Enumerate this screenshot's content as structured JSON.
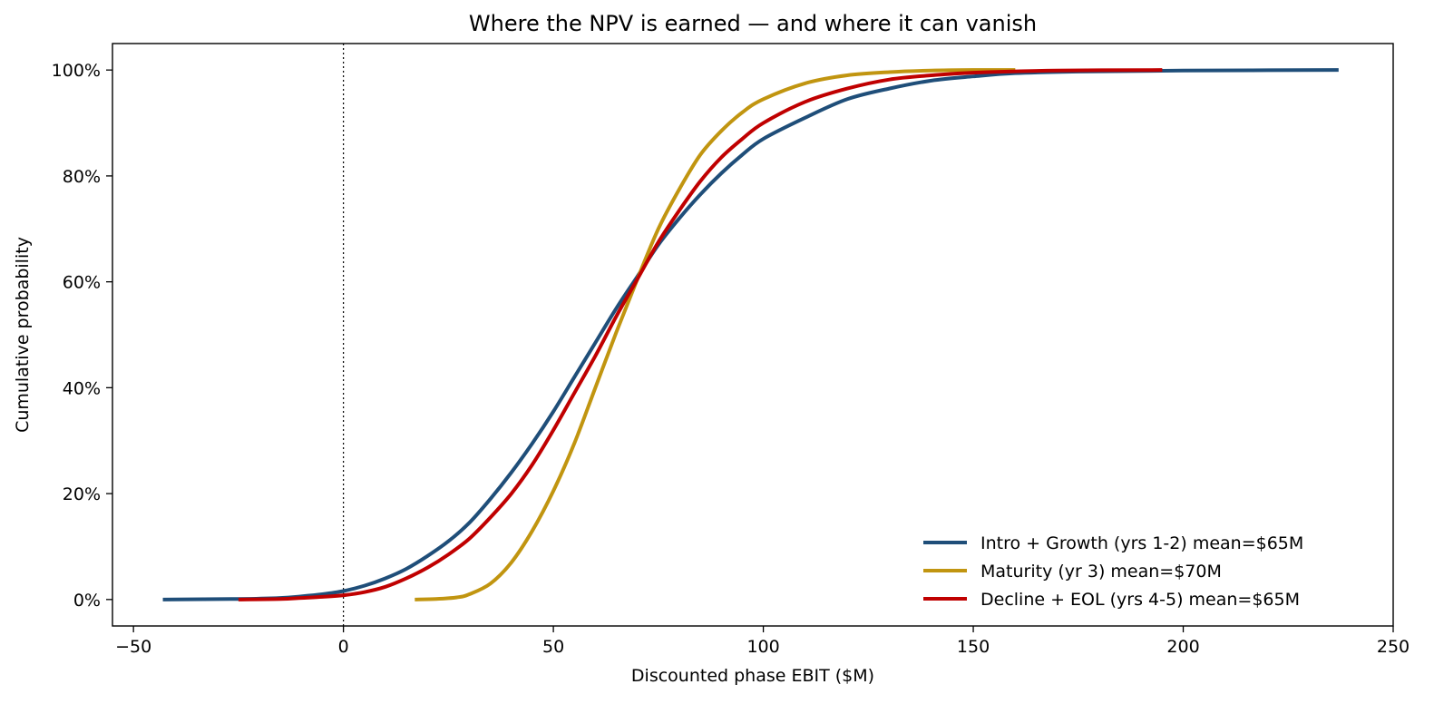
{
  "chart_data": {
    "type": "line",
    "title": "Where the NPV is earned — and where it can vanish",
    "xlabel": "Discounted phase EBIT  ($M)",
    "ylabel": "Cumulative probability",
    "xlim": [
      -55,
      250
    ],
    "ylim": [
      -0.05,
      1.05
    ],
    "xticks": [
      -50,
      0,
      50,
      100,
      150,
      200,
      250
    ],
    "xtick_labels": [
      "−50",
      "0",
      "50",
      "100",
      "150",
      "200",
      "250"
    ],
    "yticks": [
      0,
      0.2,
      0.4,
      0.6,
      0.8,
      1.0
    ],
    "ytick_labels": [
      "0%",
      "20%",
      "40%",
      "60%",
      "80%",
      "100%"
    ],
    "grid": false,
    "legend_position": "lower-right",
    "reference_line": {
      "x": 0,
      "style": "dotted"
    },
    "series": [
      {
        "name": "Intro + Growth  (yrs 1-2)   mean=$65M",
        "color": "#1f4e79",
        "x": [
          -43,
          -25,
          -15,
          -10,
          -5,
          0,
          5,
          10,
          15,
          20,
          25,
          30,
          35,
          40,
          45,
          50,
          55,
          60,
          65,
          70,
          75,
          80,
          85,
          90,
          95,
          100,
          110,
          120,
          130,
          140,
          150,
          160,
          175,
          200,
          237
        ],
        "y": [
          0.0,
          0.001,
          0.003,
          0.006,
          0.01,
          0.016,
          0.026,
          0.04,
          0.058,
          0.082,
          0.11,
          0.145,
          0.19,
          0.24,
          0.295,
          0.355,
          0.42,
          0.485,
          0.55,
          0.61,
          0.67,
          0.72,
          0.765,
          0.805,
          0.84,
          0.87,
          0.91,
          0.945,
          0.965,
          0.98,
          0.988,
          0.994,
          0.997,
          0.999,
          1.0
        ]
      },
      {
        "name": "Maturity  (yr 3)   mean=$70M",
        "color": "#c19510",
        "x": [
          17,
          22,
          27,
          30,
          35,
          40,
          45,
          50,
          55,
          60,
          65,
          70,
          75,
          80,
          85,
          90,
          95,
          100,
          110,
          120,
          130,
          140,
          150,
          160
        ],
        "y": [
          0.0,
          0.001,
          0.004,
          0.01,
          0.03,
          0.07,
          0.13,
          0.205,
          0.295,
          0.4,
          0.505,
          0.605,
          0.7,
          0.775,
          0.84,
          0.885,
          0.92,
          0.945,
          0.975,
          0.99,
          0.996,
          0.999,
          1.0,
          1.0
        ]
      },
      {
        "name": "Decline + EOL  (yrs 4-5)   mean=$65M",
        "color": "#c00000",
        "x": [
          -25,
          -15,
          -10,
          -5,
          0,
          5,
          10,
          15,
          20,
          25,
          30,
          35,
          40,
          45,
          50,
          55,
          60,
          65,
          70,
          75,
          80,
          85,
          90,
          95,
          100,
          110,
          120,
          130,
          140,
          150,
          170,
          195
        ],
        "y": [
          0.0,
          0.001,
          0.003,
          0.005,
          0.008,
          0.014,
          0.024,
          0.04,
          0.06,
          0.085,
          0.115,
          0.155,
          0.2,
          0.255,
          0.32,
          0.39,
          0.46,
          0.535,
          0.605,
          0.675,
          0.735,
          0.79,
          0.835,
          0.87,
          0.9,
          0.94,
          0.965,
          0.982,
          0.99,
          0.995,
          0.999,
          1.0
        ]
      }
    ]
  }
}
